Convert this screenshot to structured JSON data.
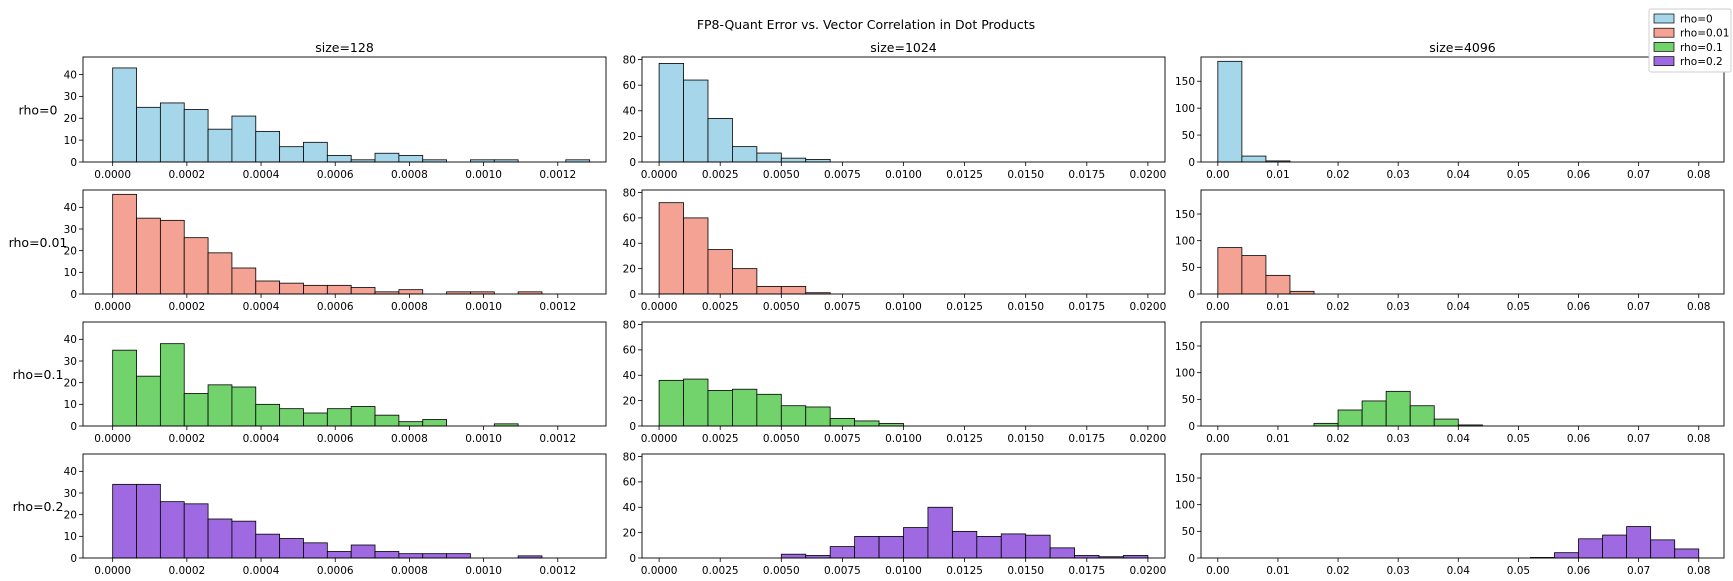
{
  "figure": {
    "title": "FP8-Quant Error vs. Vector Correlation in Dot Products",
    "columns": [
      "size=128",
      "size=1024",
      "size=4096"
    ],
    "rows": [
      "rho=0",
      "rho=0.01",
      "rho=0.1",
      "rho=0.2"
    ]
  },
  "legend": {
    "placement": "top-right",
    "entries": [
      {
        "label": "rho=0",
        "color": "#a6d6ea"
      },
      {
        "label": "rho=0.01",
        "color": "#f4a293"
      },
      {
        "label": "rho=0.1",
        "color": "#72d36d"
      },
      {
        "label": "rho=0.2",
        "color": "#9f69e2"
      }
    ]
  },
  "chart_data": {
    "type": "histogram",
    "title": "FP8-Quant Error vs. Vector Correlation in Dot Products",
    "grid": false,
    "columns": [
      {
        "title": "size=128",
        "xlim": [
          -8e-05,
          0.00133
        ],
        "xticks": [
          {
            "v": 0,
            "t": "0.0000"
          },
          {
            "v": 0.0002,
            "t": "0.0002"
          },
          {
            "v": 0.0004,
            "t": "0.0004"
          },
          {
            "v": 0.0006,
            "t": "0.0006"
          },
          {
            "v": 0.0008,
            "t": "0.0008"
          },
          {
            "v": 0.001,
            "t": "0.0010"
          },
          {
            "v": 0.0012,
            "t": "0.0012"
          }
        ],
        "ylim": [
          0,
          48
        ],
        "yticks": [
          0,
          10,
          20,
          30,
          40
        ],
        "bin_start": 0,
        "bin_width": 6.43e-05,
        "counts": {
          "rho=0": [
            43,
            25,
            27,
            24,
            15,
            21,
            14,
            7,
            9,
            3,
            1,
            4,
            3,
            1,
            0,
            1,
            1,
            0,
            0,
            1
          ],
          "rho=0.01": [
            46,
            35,
            34,
            26,
            19,
            12,
            6,
            5,
            4,
            4,
            3,
            1,
            2,
            0,
            1,
            1,
            0,
            1
          ],
          "rho=0.1": [
            35,
            23,
            38,
            15,
            19,
            18,
            10,
            8,
            6,
            8,
            9,
            5,
            2,
            3,
            0,
            0,
            1
          ],
          "rho=0.2": [
            34,
            34,
            26,
            25,
            18,
            17,
            11,
            9,
            7,
            3,
            6,
            3,
            2,
            2,
            2,
            0,
            0,
            1
          ]
        }
      },
      {
        "title": "size=1024",
        "xlim": [
          -0.0007,
          0.0207
        ],
        "xticks": [
          {
            "v": 0,
            "t": "0.0000"
          },
          {
            "v": 0.0025,
            "t": "0.0025"
          },
          {
            "v": 0.005,
            "t": "0.0050"
          },
          {
            "v": 0.0075,
            "t": "0.0075"
          },
          {
            "v": 0.01,
            "t": "0.0100"
          },
          {
            "v": 0.0125,
            "t": "0.0125"
          },
          {
            "v": 0.015,
            "t": "0.0150"
          },
          {
            "v": 0.0175,
            "t": "0.0175"
          },
          {
            "v": 0.02,
            "t": "0.0200"
          }
        ],
        "ylim": [
          0,
          82
        ],
        "yticks": [
          0,
          20,
          40,
          60,
          80
        ],
        "bin_start": 0,
        "bin_width": 0.001,
        "counts": {
          "rho=0": [
            77,
            64,
            34,
            12,
            7,
            3,
            2
          ],
          "rho=0.01": [
            72,
            60,
            35,
            20,
            6,
            6,
            1
          ],
          "rho=0.1": [
            36,
            37,
            28,
            29,
            25,
            16,
            15,
            6,
            4,
            2
          ],
          "rho=0.2": [
            0,
            0,
            0,
            0,
            0,
            3,
            2,
            9,
            17,
            17,
            24,
            40,
            21,
            17,
            19,
            18,
            8,
            2,
            1,
            2
          ]
        }
      },
      {
        "title": "size=4096",
        "xlim": [
          -0.0028,
          0.0842
        ],
        "xticks": [
          {
            "v": 0,
            "t": "0.00"
          },
          {
            "v": 0.01,
            "t": "0.01"
          },
          {
            "v": 0.02,
            "t": "0.02"
          },
          {
            "v": 0.03,
            "t": "0.03"
          },
          {
            "v": 0.04,
            "t": "0.04"
          },
          {
            "v": 0.05,
            "t": "0.05"
          },
          {
            "v": 0.06,
            "t": "0.06"
          },
          {
            "v": 0.07,
            "t": "0.07"
          },
          {
            "v": 0.08,
            "t": "0.08"
          }
        ],
        "ylim": [
          0,
          195
        ],
        "yticks": [
          0,
          50,
          100,
          150
        ],
        "bin_start": 0,
        "bin_width": 0.004,
        "counts": {
          "rho=0": [
            187,
            11,
            2
          ],
          "rho=0.01": [
            87,
            72,
            35,
            5
          ],
          "rho=0.1": [
            0,
            0,
            0,
            0,
            5,
            30,
            47,
            65,
            38,
            13,
            2
          ],
          "rho=0.2": [
            0,
            0,
            0,
            0,
            0,
            0,
            0,
            0,
            0,
            0,
            0,
            0,
            0,
            1,
            10,
            36,
            43,
            59,
            34,
            17
          ]
        }
      }
    ]
  }
}
